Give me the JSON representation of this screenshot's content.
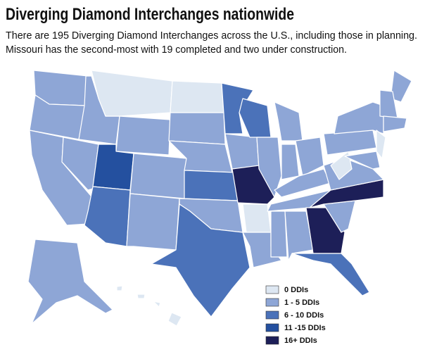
{
  "header": {
    "title": "Diverging Diamond Interchanges nationwide",
    "subtitle": [
      "There are 195 Diverging Diamond Interchanges across the U.S., including those in planning.",
      "Missouri has the second-most with 19 completed and two under construction."
    ]
  },
  "legend": [
    {
      "label": "0 DDIs",
      "color": "#dde7f2"
    },
    {
      "label": "1 - 5 DDIs",
      "color": "#8ea6d6"
    },
    {
      "label": "6 - 10 DDIs",
      "color": "#4b72b9"
    },
    {
      "label": "11 -15 DDIs",
      "color": "#24509f"
    },
    {
      "label": "16+ DDIs",
      "color": "#1d1f58"
    }
  ]
}
